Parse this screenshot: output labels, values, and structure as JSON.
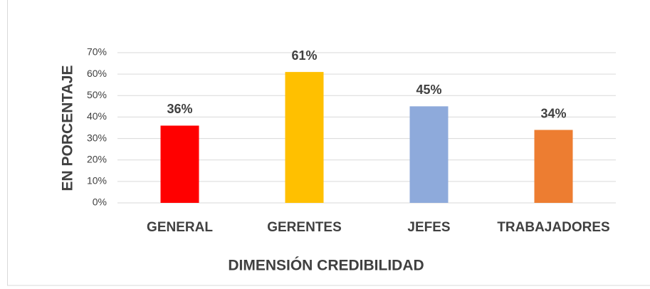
{
  "chart_data": {
    "type": "bar",
    "categories": [
      "GENERAL",
      "GERENTES",
      "JEFES",
      "TRABAJADORES"
    ],
    "values": [
      36,
      61,
      45,
      34
    ],
    "value_labels": [
      "36%",
      "61%",
      "45%",
      "34%"
    ],
    "colors": [
      "#ff0000",
      "#ffc000",
      "#8eaadb",
      "#ed7d31"
    ],
    "xlabel": "DIMENSIÓN CREDIBILIDAD",
    "ylabel": "EN PORCENTAJE",
    "ylim": [
      0,
      70
    ],
    "yticks": [
      {
        "value": 0,
        "label": "0%"
      },
      {
        "value": 10,
        "label": "10%"
      },
      {
        "value": 20,
        "label": "20%"
      },
      {
        "value": 30,
        "label": "30%"
      },
      {
        "value": 40,
        "label": "40%"
      },
      {
        "value": 50,
        "label": "50%"
      },
      {
        "value": 60,
        "label": "60%"
      },
      {
        "value": 70,
        "label": "70%"
      }
    ],
    "grid": true
  }
}
